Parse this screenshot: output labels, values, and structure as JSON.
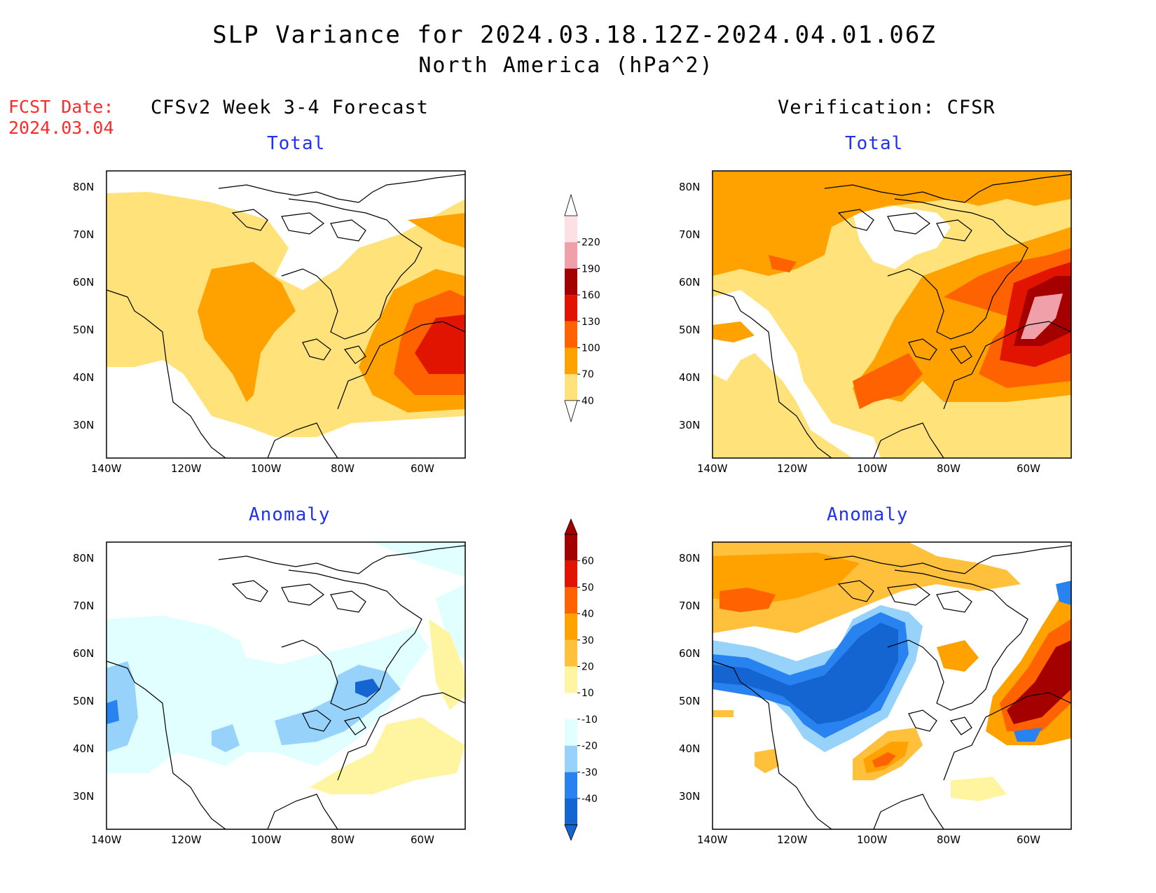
{
  "header": {
    "title": "SLP Variance for 2024.03.18.12Z-2024.04.01.06Z",
    "subtitle": "North America (hPa^2)",
    "fcst_label": "FCST Date:",
    "fcst_date": "2024.03.04"
  },
  "columns": {
    "left": "CFSv2 Week 3-4 Forecast",
    "right": "Verification: CFSR"
  },
  "panels": {
    "total_label": "Total",
    "anomaly_label": "Anomaly"
  },
  "axes": {
    "lat_labels": [
      "80N",
      "70N",
      "60N",
      "50N",
      "40N",
      "30N"
    ],
    "lon_labels": [
      "140W",
      "120W",
      "100W",
      "80W",
      "60W"
    ]
  },
  "colorbars": {
    "total": {
      "levels": [
        "40",
        "70",
        "100",
        "130",
        "160",
        "190",
        "220"
      ],
      "colors": [
        "#ffe37a",
        "#ffa200",
        "#ff6200",
        "#e01400",
        "#a50000",
        "#f0a0a8",
        "#fde0e4"
      ]
    },
    "anomaly": {
      "levels": [
        "-40",
        "-30",
        "-20",
        "-10",
        "10",
        "20",
        "30",
        "40",
        "50",
        "60"
      ],
      "colors": [
        "#1464d2",
        "#2882f0",
        "#96d2fa",
        "#e1ffff",
        "#ffffff",
        "#fff5a0",
        "#ffc03c",
        "#ffa200",
        "#ff6200",
        "#e01400",
        "#a50000"
      ]
    }
  }
}
